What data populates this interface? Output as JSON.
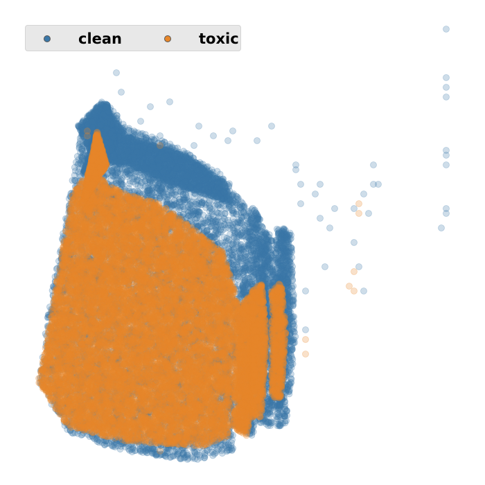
{
  "chart_data": {
    "type": "scatter",
    "title": "",
    "xlabel": "",
    "ylabel": "",
    "axes_visible": false,
    "grid": false,
    "legend_position": "top-left",
    "point_alpha": 0.25,
    "xlim": [
      0,
      1
    ],
    "ylim": [
      0,
      1
    ],
    "series": [
      {
        "name": "clean",
        "color": "#3b78a8",
        "n": 14000,
        "regions": [
          {
            "poly": [
              [
                0.08,
                0.21
              ],
              [
                0.14,
                0.11
              ],
              [
                0.25,
                0.07
              ],
              [
                0.4,
                0.05
              ],
              [
                0.48,
                0.07
              ],
              [
                0.5,
                0.4
              ],
              [
                0.52,
                0.56
              ],
              [
                0.46,
                0.64
              ],
              [
                0.36,
                0.7
              ],
              [
                0.26,
                0.74
              ],
              [
                0.22,
                0.79
              ],
              [
                0.17,
                0.75
              ],
              [
                0.13,
                0.52
              ],
              [
                0.1,
                0.36
              ]
            ],
            "w": 0.46
          },
          {
            "poly": [
              [
                0.16,
                0.74
              ],
              [
                0.21,
                0.79
              ],
              [
                0.26,
                0.72
              ],
              [
                0.38,
                0.68
              ],
              [
                0.46,
                0.63
              ],
              [
                0.48,
                0.58
              ],
              [
                0.36,
                0.62
              ],
              [
                0.26,
                0.66
              ],
              [
                0.2,
                0.66
              ]
            ],
            "w": 0.17
          },
          {
            "poly": [
              [
                0.17,
                0.64
              ],
              [
                0.22,
                0.79
              ],
              [
                0.24,
                0.7
              ]
            ],
            "w": 0.07
          },
          {
            "poly": [
              [
                0.49,
                0.12
              ],
              [
                0.52,
                0.1
              ],
              [
                0.55,
                0.22
              ],
              [
                0.55,
                0.52
              ],
              [
                0.52,
                0.58
              ],
              [
                0.5,
                0.42
              ]
            ],
            "w": 0.07
          },
          {
            "poly": [
              [
                0.53,
                0.13
              ],
              [
                0.56,
                0.12
              ],
              [
                0.57,
                0.32
              ],
              [
                0.56,
                0.52
              ],
              [
                0.54,
                0.52
              ],
              [
                0.53,
                0.3
              ]
            ],
            "w": 0.04
          },
          {
            "poly": [
              [
                0.56,
                0.16
              ],
              [
                0.58,
                0.16
              ],
              [
                0.6,
                0.35
              ],
              [
                0.59,
                0.53
              ],
              [
                0.57,
                0.53
              ],
              [
                0.56,
                0.35
              ]
            ],
            "w": 0.04
          },
          {
            "poly": [
              [
                0.57,
                0.12
              ],
              [
                0.59,
                0.12
              ],
              [
                0.61,
                0.3
              ],
              [
                0.6,
                0.52
              ],
              [
                0.58,
                0.52
              ],
              [
                0.57,
                0.3
              ]
            ],
            "w": 0.03
          }
        ],
        "scatter": [
          [
            0.24,
            0.85
          ],
          [
            0.25,
            0.81
          ],
          [
            0.31,
            0.78
          ],
          [
            0.35,
            0.79
          ],
          [
            0.41,
            0.74
          ],
          [
            0.48,
            0.73
          ],
          [
            0.53,
            0.71
          ],
          [
            0.56,
            0.74
          ],
          [
            0.61,
            0.65
          ],
          [
            0.61,
            0.66
          ],
          [
            0.62,
            0.62
          ],
          [
            0.62,
            0.58
          ],
          [
            0.63,
            0.4
          ],
          [
            0.63,
            0.32
          ],
          [
            0.65,
            0.6
          ],
          [
            0.66,
            0.62
          ],
          [
            0.66,
            0.55
          ],
          [
            0.67,
            0.45
          ],
          [
            0.68,
            0.53
          ],
          [
            0.69,
            0.57
          ],
          [
            0.73,
            0.57
          ],
          [
            0.73,
            0.5
          ],
          [
            0.74,
            0.45
          ],
          [
            0.75,
            0.6
          ],
          [
            0.75,
            0.4
          ],
          [
            0.76,
            0.56
          ],
          [
            0.77,
            0.62
          ],
          [
            0.77,
            0.66
          ],
          [
            0.78,
            0.62
          ],
          [
            0.92,
            0.94
          ],
          [
            0.92,
            0.84
          ],
          [
            0.92,
            0.82
          ],
          [
            0.92,
            0.8
          ],
          [
            0.92,
            0.69
          ],
          [
            0.92,
            0.68
          ],
          [
            0.92,
            0.66
          ],
          [
            0.92,
            0.57
          ],
          [
            0.92,
            0.56
          ],
          [
            0.91,
            0.53
          ],
          [
            0.47,
            0.71
          ],
          [
            0.29,
            0.75
          ],
          [
            0.33,
            0.72
          ],
          [
            0.4,
            0.7
          ],
          [
            0.44,
            0.72
          ]
        ]
      },
      {
        "name": "toxic",
        "color": "#e8872a",
        "n": 16000,
        "regions": [
          {
            "poly": [
              [
                0.08,
                0.21
              ],
              [
                0.14,
                0.12
              ],
              [
                0.26,
                0.09
              ],
              [
                0.42,
                0.08
              ],
              [
                0.47,
                0.1
              ],
              [
                0.49,
                0.38
              ],
              [
                0.46,
                0.48
              ],
              [
                0.41,
                0.52
              ],
              [
                0.33,
                0.58
              ],
              [
                0.26,
                0.6
              ],
              [
                0.22,
                0.62
              ],
              [
                0.19,
                0.66
              ],
              [
                0.15,
                0.6
              ],
              [
                0.12,
                0.44
              ],
              [
                0.1,
                0.32
              ]
            ],
            "w": 0.6
          },
          {
            "poly": [
              [
                0.17,
                0.58
              ],
              [
                0.2,
                0.73
              ],
              [
                0.22,
                0.66
              ]
            ],
            "w": 0.06
          },
          {
            "poly": [
              [
                0.48,
                0.12
              ],
              [
                0.51,
                0.1
              ],
              [
                0.53,
                0.25
              ],
              [
                0.52,
                0.4
              ],
              [
                0.49,
                0.36
              ]
            ],
            "w": 0.06
          },
          {
            "poly": [
              [
                0.52,
                0.14
              ],
              [
                0.54,
                0.14
              ],
              [
                0.55,
                0.3
              ],
              [
                0.54,
                0.42
              ],
              [
                0.52,
                0.4
              ]
            ],
            "w": 0.04
          },
          {
            "poly": [
              [
                0.56,
                0.18
              ],
              [
                0.58,
                0.18
              ],
              [
                0.59,
                0.32
              ],
              [
                0.58,
                0.42
              ],
              [
                0.56,
                0.4
              ]
            ],
            "w": 0.03
          }
        ],
        "scatter": [
          [
            0.08,
            0.22
          ],
          [
            0.18,
            0.73
          ],
          [
            0.18,
            0.72
          ],
          [
            0.33,
            0.7
          ],
          [
            0.74,
            0.58
          ],
          [
            0.74,
            0.56
          ],
          [
            0.73,
            0.44
          ],
          [
            0.72,
            0.41
          ],
          [
            0.73,
            0.4
          ],
          [
            0.63,
            0.27
          ],
          [
            0.63,
            0.3
          ],
          [
            0.33,
            0.07
          ],
          [
            0.46,
            0.12
          ]
        ]
      }
    ]
  },
  "legend": {
    "items": [
      {
        "label": "clean",
        "color": "#3b78a8"
      },
      {
        "label": "toxic",
        "color": "#e8872a"
      }
    ]
  }
}
